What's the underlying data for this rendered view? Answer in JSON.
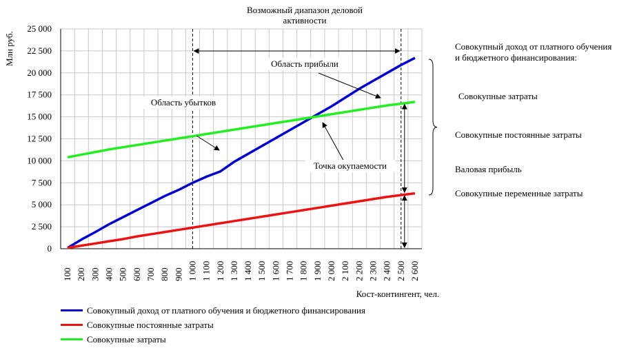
{
  "chart_data": {
    "type": "line",
    "title": "Возможный диапазон деловой активности",
    "ylabel": "Млн руб.",
    "xlabel": "Кост-контингент, чел.",
    "ylim": [
      0,
      25000
    ],
    "yticks": [
      0,
      2500,
      5000,
      7500,
      10000,
      12500,
      15000,
      17500,
      20000,
      22500,
      25000
    ],
    "ytick_labels": [
      "0",
      "2 500",
      "5 000",
      "7 500",
      "10 000",
      "12 500",
      "15 000",
      "17 500",
      "20 000",
      "22 500",
      "25 000"
    ],
    "categories": [
      "100",
      "200",
      "300",
      "400",
      "500",
      "600",
      "700",
      "800",
      "900",
      "1 000",
      "1 100",
      "1 200",
      "1 300",
      "1 400",
      "1 500",
      "1 600",
      "1 700",
      "1 800",
      "1 900",
      "2 000",
      "2 100",
      "2 200",
      "2 300",
      "2 400",
      "2 500",
      "2 600"
    ],
    "x_values": [
      100,
      200,
      300,
      400,
      500,
      600,
      700,
      800,
      900,
      1000,
      1100,
      1200,
      1300,
      1400,
      1500,
      1600,
      1700,
      1800,
      1900,
      2000,
      2100,
      2200,
      2300,
      2400,
      2500,
      2600
    ],
    "grid": true,
    "series": [
      {
        "name": "Совокупный доход от платного обучения и бюджетного финансирования",
        "color": "#0000cc",
        "values": [
          100,
          1050,
          1900,
          2800,
          3600,
          4400,
          5200,
          6000,
          6700,
          7500,
          8200,
          8800,
          9900,
          10800,
          11700,
          12600,
          13500,
          14400,
          15300,
          16200,
          17200,
          18200,
          19100,
          20000,
          20900,
          21700
        ]
      },
      {
        "name": "Совокупные постоянные затраты",
        "color": "#ee1111",
        "values": [
          100,
          350,
          600,
          850,
          1100,
          1400,
          1650,
          1900,
          2150,
          2400,
          2650,
          2900,
          3150,
          3400,
          3650,
          3900,
          4150,
          4400,
          4650,
          4900,
          5150,
          5400,
          5650,
          5900,
          6100,
          6300
        ]
      },
      {
        "name": "Совокупные затраты",
        "color": "#22ee22",
        "values": [
          10400,
          10700,
          11000,
          11300,
          11550,
          11800,
          12050,
          12300,
          12550,
          12800,
          13050,
          13300,
          13550,
          13800,
          14050,
          14300,
          14550,
          14800,
          15050,
          15300,
          15550,
          15800,
          16050,
          16300,
          16500,
          16700
        ]
      }
    ],
    "range_markers": [
      1000,
      2500
    ],
    "annotations": [
      {
        "text": "Область убытков"
      },
      {
        "text": "Область прибыли"
      },
      {
        "text": "Точка окупаемости"
      }
    ]
  },
  "side_labels": {
    "revenue": "Совокупный доход от платного обучения и бюджетного финансирования:",
    "total_costs": "Совокупные затраты",
    "fixed_costs": "Совокупные постоянные затраты",
    "gross_profit": "Валовая прибыль",
    "variable_costs": "Совокупные переменные затраты"
  }
}
